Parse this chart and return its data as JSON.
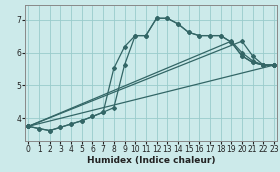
{
  "xlabel": "Humidex (Indice chaleur)",
  "bg_color": "#cceaea",
  "grid_color": "#99cccc",
  "line_color": "#336666",
  "xlim": [
    -0.3,
    23.3
  ],
  "ylim": [
    3.3,
    7.45
  ],
  "xticks": [
    0,
    1,
    2,
    3,
    4,
    5,
    6,
    7,
    8,
    9,
    10,
    11,
    12,
    13,
    14,
    15,
    16,
    17,
    18,
    19,
    20,
    21,
    22,
    23
  ],
  "yticks": [
    4,
    5,
    6,
    7
  ],
  "lines": [
    {
      "x": [
        0,
        1,
        2,
        3,
        4,
        5,
        6,
        7,
        8,
        9,
        10,
        11,
        12,
        13,
        14,
        15,
        16,
        17,
        18,
        19,
        20,
        21,
        22,
        23
      ],
      "y": [
        3.75,
        3.68,
        3.62,
        3.72,
        3.82,
        3.92,
        4.05,
        4.18,
        5.52,
        6.18,
        6.52,
        6.52,
        7.05,
        7.05,
        6.88,
        6.62,
        6.52,
        6.52,
        6.52,
        6.32,
        5.9,
        5.7,
        5.62,
        5.62
      ],
      "marker": "D",
      "markersize": 2.0,
      "linewidth": 0.9,
      "linestyle": "-"
    },
    {
      "x": [
        0,
        1,
        2,
        3,
        4,
        5,
        6,
        7,
        8,
        9,
        10,
        11,
        12,
        13,
        14,
        15,
        16,
        17,
        18,
        19,
        20,
        21,
        22,
        23
      ],
      "y": [
        3.75,
        3.68,
        3.62,
        3.72,
        3.82,
        3.92,
        4.05,
        4.18,
        4.32,
        5.62,
        6.52,
        6.52,
        7.05,
        7.05,
        6.88,
        6.62,
        6.52,
        6.52,
        6.52,
        6.32,
        5.9,
        5.7,
        5.62,
        5.62
      ],
      "marker": "D",
      "markersize": 2.0,
      "linewidth": 0.9,
      "linestyle": "-"
    },
    {
      "x": [
        0,
        23
      ],
      "y": [
        3.75,
        5.62
      ],
      "marker": "D",
      "markersize": 2.0,
      "linewidth": 0.9,
      "linestyle": "-"
    },
    {
      "x": [
        0,
        20,
        21,
        22,
        23
      ],
      "y": [
        3.75,
        6.35,
        5.9,
        5.62,
        5.62
      ],
      "marker": "D",
      "markersize": 2.0,
      "linewidth": 0.9,
      "linestyle": "-"
    },
    {
      "x": [
        0,
        19,
        20,
        21,
        22,
        23
      ],
      "y": [
        3.75,
        6.35,
        6.0,
        5.75,
        5.62,
        5.62
      ],
      "marker": "D",
      "markersize": 2.0,
      "linewidth": 0.9,
      "linestyle": "-"
    }
  ]
}
